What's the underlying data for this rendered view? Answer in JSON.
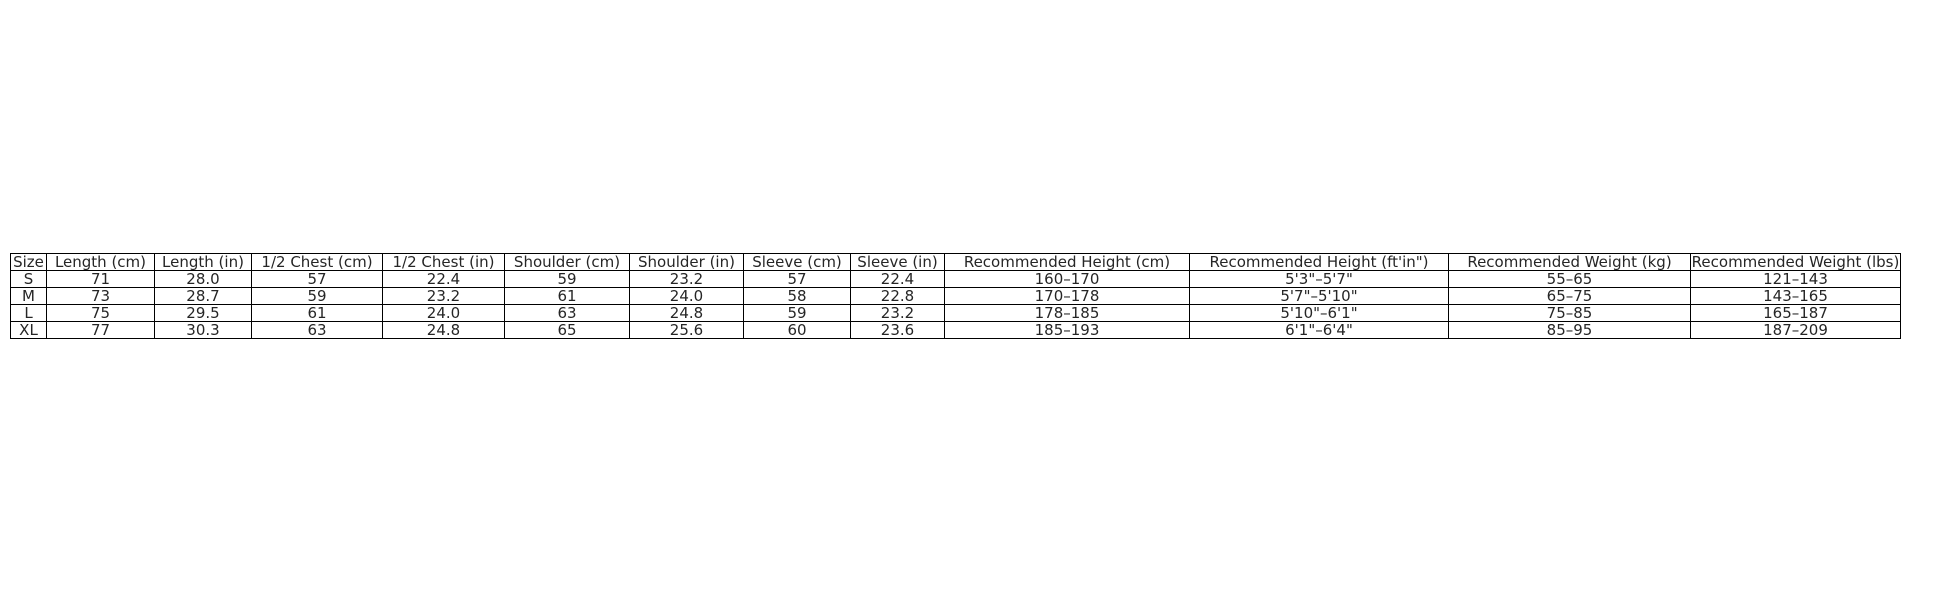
{
  "table": {
    "headers": [
      "Size",
      "Length (cm)",
      "Length (in)",
      "1/2 Chest (cm)",
      "1/2 Chest (in)",
      "Shoulder (cm)",
      "Shoulder (in)",
      "Sleeve (cm)",
      "Sleeve (in)",
      "Recommended Height (cm)",
      "Recommended Height (ft'in\")",
      "Recommended Weight (kg)",
      "Recommended Weight (lbs)"
    ],
    "rows": [
      [
        "S",
        "71",
        "28.0",
        "57",
        "22.4",
        "59",
        "23.2",
        "57",
        "22.4",
        "160–170",
        "5'3\"–5'7\"",
        "55–65",
        "121–143"
      ],
      [
        "M",
        "73",
        "28.7",
        "59",
        "23.2",
        "61",
        "24.0",
        "58",
        "22.8",
        "170–178",
        "5'7\"–5'10\"",
        "65–75",
        "143–165"
      ],
      [
        "L",
        "75",
        "29.5",
        "61",
        "24.0",
        "63",
        "24.8",
        "59",
        "23.2",
        "178–185",
        "5'10\"–6'1\"",
        "75–85",
        "165–187"
      ],
      [
        "XL",
        "77",
        "30.3",
        "63",
        "24.8",
        "65",
        "25.6",
        "60",
        "23.6",
        "185–193",
        "6'1\"–6'4\"",
        "85–95",
        "187–209"
      ]
    ]
  }
}
